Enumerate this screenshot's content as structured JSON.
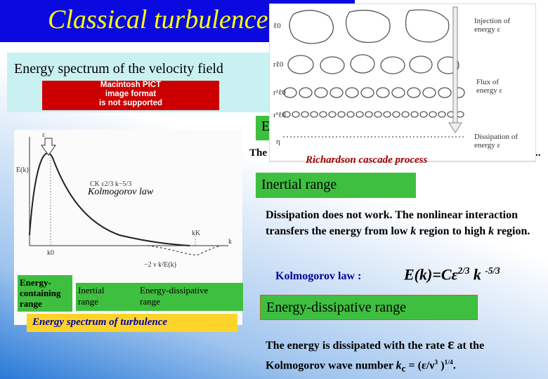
{
  "header": {
    "title": "Classical turbulence"
  },
  "field_box": {
    "text": "Energy spectrum of the velocity field",
    "pict_notice": [
      "Macintosh PICT",
      "image format",
      "is not supported"
    ]
  },
  "hidden_fragments": {
    "box": "E",
    "line_start": "The",
    "line_end": ".."
  },
  "cascade": {
    "scales": [
      "ℓ0",
      "rℓ0",
      "r²ℓ0",
      "r³ℓ0",
      "η"
    ],
    "injection": [
      "Injection of",
      "energy ε"
    ],
    "flux": [
      "Flux of",
      "energy ε"
    ],
    "dissipation": [
      "Dissipation of",
      "energy ε"
    ],
    "caption": "Richardson cascade process"
  },
  "spectrum": {
    "y_label": "E(k)",
    "x_label": "k",
    "epsilon": "ε",
    "k0": "k0",
    "kK": "kK",
    "law_formula": "CK ε2/3 k−5/3",
    "dissip_formula": "−2 ν k²E(k)",
    "law_label": "Kolmogorov law",
    "ranges": [
      [
        "Energy-",
        "containing",
        "range"
      ],
      [
        "Inertial",
        "range"
      ],
      [
        "Energy-dissipative",
        "range"
      ]
    ],
    "caption": "Energy spectrum of turbulence"
  },
  "inertial": {
    "heading": "Inertial range",
    "text": [
      "Dissipation does not work. The nonlinear interaction transfers the energy from low ",
      "k",
      " region to high ",
      "k",
      " region."
    ]
  },
  "law": {
    "label": "Kolmogorov law :",
    "formula": [
      "E(k)=Cε",
      "2/3",
      " k ",
      "-5/3"
    ]
  },
  "dissipative": {
    "heading": "Energy-dissipative range",
    "text": [
      "The energy is dissipated with the rate ",
      "ε",
      " at the Kolmogorov wave number ",
      "k",
      "c",
      " = (ε/ν",
      "3",
      " )",
      "1/4",
      "."
    ]
  }
}
